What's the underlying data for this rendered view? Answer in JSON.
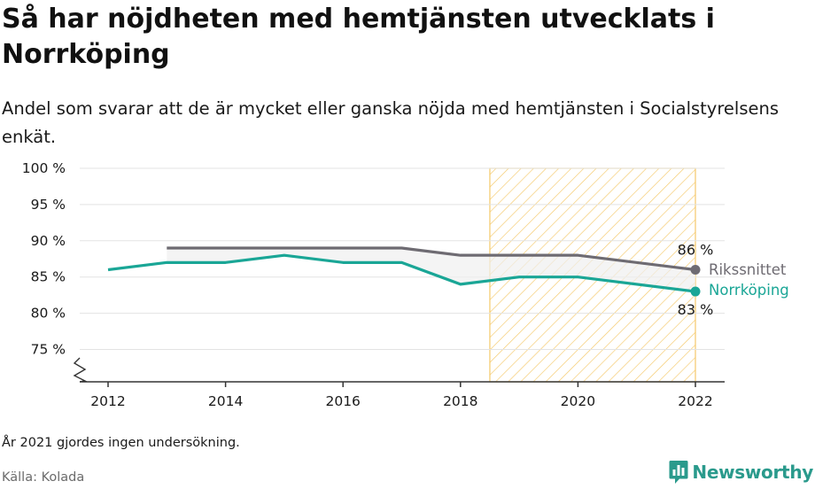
{
  "header": {
    "title": "Så har nöjdheten med hemtjänsten utvecklats i Norrköping",
    "subtitle": "Andel som svarar att de är mycket eller ganska nöjda med hemtjänsten i Socialstyrelsens enkät."
  },
  "footer": {
    "note": "År 2021 gjordes ingen undersökning.",
    "source": "Källa: Kolada",
    "brand": "Newsworthy"
  },
  "colors": {
    "national": "#6e6b72",
    "local": "#1aa696",
    "highlight": "#f5c96a",
    "axis": "#333333",
    "grid": "#e3e3e3"
  },
  "icons": {
    "axis_break": "zigzag-break-icon",
    "brand": "newsworthy-logo-icon"
  },
  "chart_data": {
    "type": "line",
    "x": [
      2012,
      2013,
      2014,
      2015,
      2016,
      2017,
      2018,
      2019,
      2020,
      2022
    ],
    "xticks": [
      "2012",
      "2014",
      "2016",
      "2018",
      "2020",
      "2022"
    ],
    "yticks": [
      "75 %",
      "80 %",
      "85 %",
      "90 %",
      "95 %",
      "100 %"
    ],
    "ylim": [
      70,
      100
    ],
    "xlim": [
      2011.5,
      2022.5
    ],
    "y_axis_break": true,
    "highlight_range": [
      2018.5,
      2022
    ],
    "series": [
      {
        "name": "Rikssnittet",
        "x": [
          2013,
          2014,
          2015,
          2016,
          2017,
          2018,
          2019,
          2020,
          2022
        ],
        "values": [
          89,
          89,
          89,
          89,
          89,
          88,
          88,
          88,
          86
        ],
        "end_label": "86 %"
      },
      {
        "name": "Norrköping",
        "x": [
          2012,
          2013,
          2014,
          2015,
          2016,
          2017,
          2018,
          2019,
          2020,
          2022
        ],
        "values": [
          86,
          87,
          87,
          88,
          87,
          87,
          84,
          85,
          85,
          83
        ],
        "end_label": "83 %"
      }
    ]
  }
}
